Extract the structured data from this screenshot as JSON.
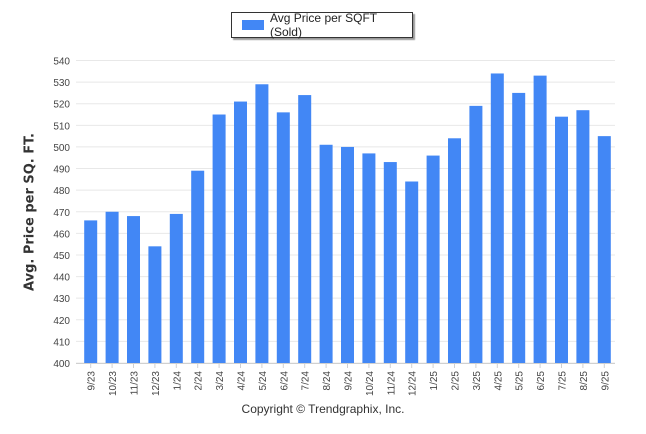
{
  "chart_data": {
    "type": "bar",
    "title": "",
    "xlabel": "",
    "ylabel": "Avg. Price per SQ. FT.",
    "ylim": [
      400,
      540
    ],
    "yticks": [
      400,
      410,
      420,
      430,
      440,
      450,
      460,
      470,
      480,
      490,
      500,
      510,
      520,
      530,
      540
    ],
    "grid": true,
    "legend_position": "top-center",
    "categories": [
      "9/23",
      "10/23",
      "11/23",
      "12/23",
      "1/24",
      "2/24",
      "3/24",
      "4/24",
      "5/24",
      "6/24",
      "7/24",
      "8/24",
      "9/24",
      "10/24",
      "11/24",
      "12/24",
      "1/25",
      "2/25",
      "3/25",
      "4/25",
      "5/25",
      "6/25",
      "7/25",
      "8/25",
      "9/25"
    ],
    "series": [
      {
        "name": "Avg Price per SQFT (Sold)",
        "color": "#4287f5",
        "values": [
          466,
          470,
          468,
          454,
          469,
          489,
          515,
          521,
          529,
          516,
          524,
          501,
          500,
          497,
          493,
          484,
          496,
          504,
          519,
          534,
          525,
          533,
          514,
          517,
          505
        ]
      }
    ]
  },
  "legend": {
    "label": "Avg Price per SQFT (Sold)"
  },
  "footer": {
    "copyright": "Copyright © Trendgraphix, Inc."
  }
}
